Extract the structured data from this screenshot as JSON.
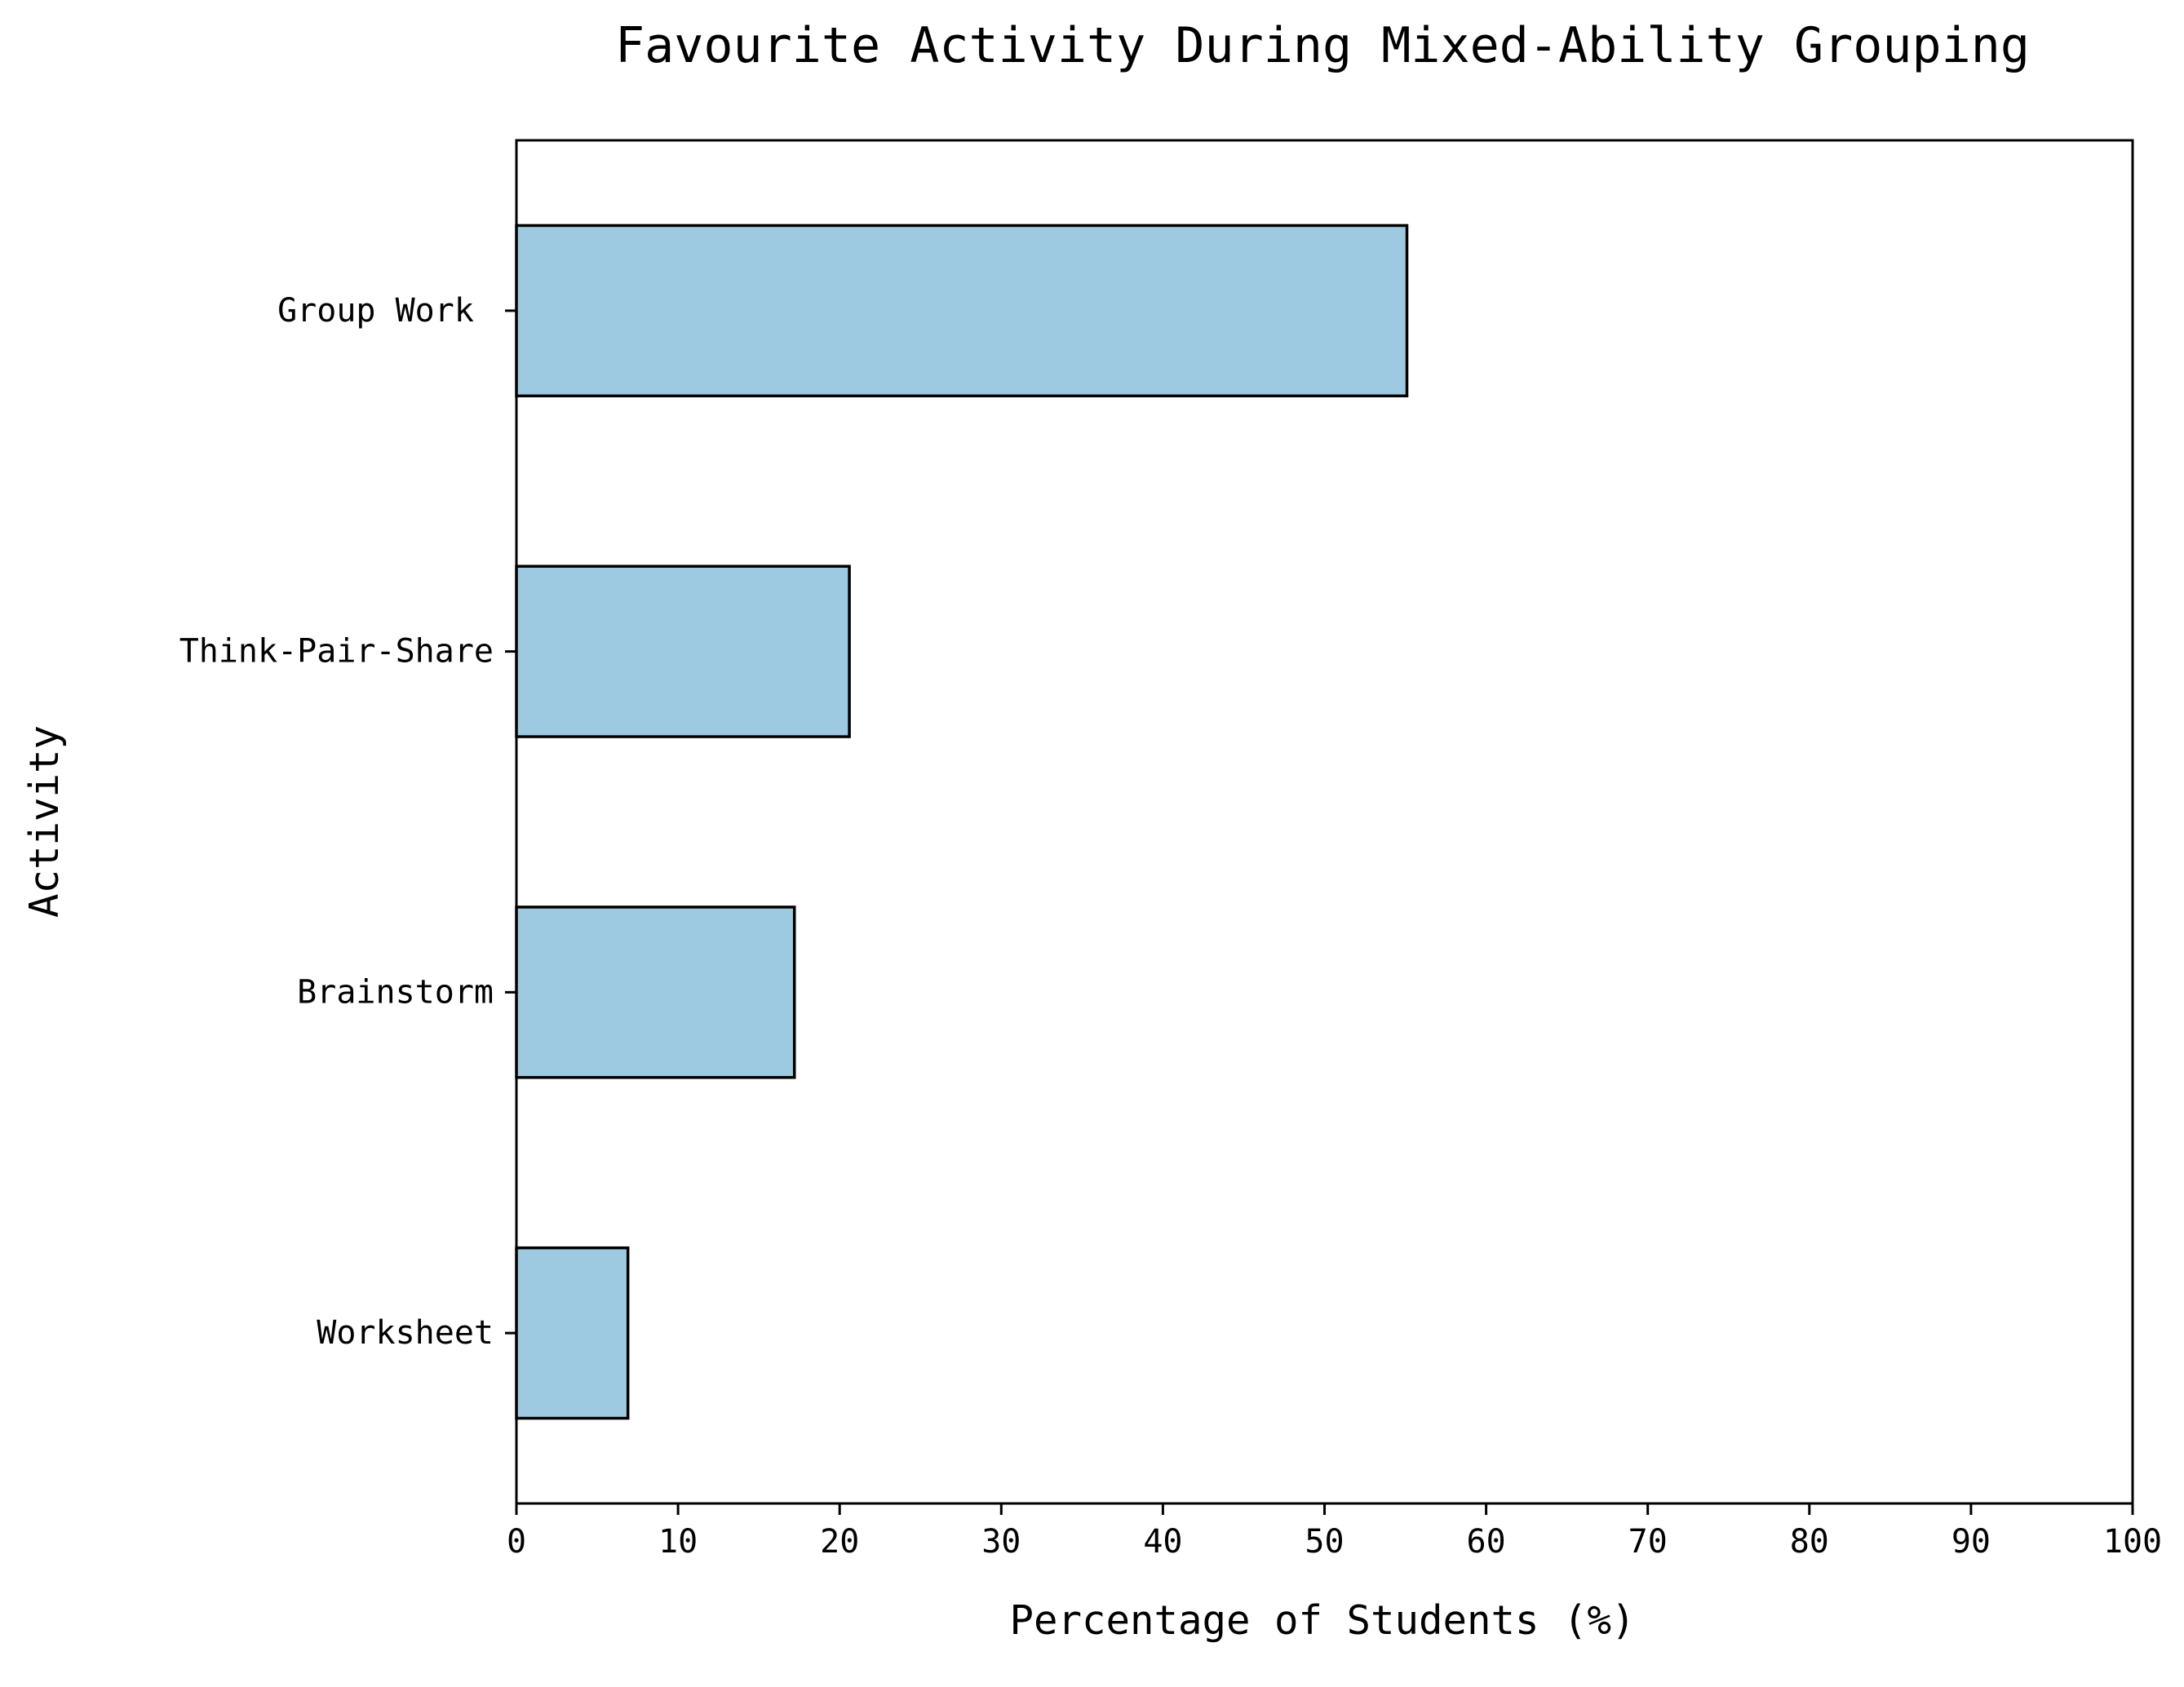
{
  "chart_data": {
    "type": "bar",
    "orientation": "horizontal",
    "title": "Favourite Activity During Mixed-Ability Grouping",
    "xlabel": "Percentage of Students (%)",
    "ylabel": "Activity",
    "categories": [
      "Group Work ",
      "Think-Pair-Share",
      "Brainstorm",
      "Worksheet"
    ],
    "values": [
      55.1,
      20.6,
      17.2,
      6.9
    ],
    "xlim": [
      0,
      100
    ],
    "xticks": [
      "0",
      "10",
      "20",
      "30",
      "40",
      "50",
      "60",
      "70",
      "80",
      "90",
      "100"
    ],
    "bar_color": "#9ecae1",
    "edge_color": "#000000",
    "grid": false,
    "legend": "none"
  }
}
